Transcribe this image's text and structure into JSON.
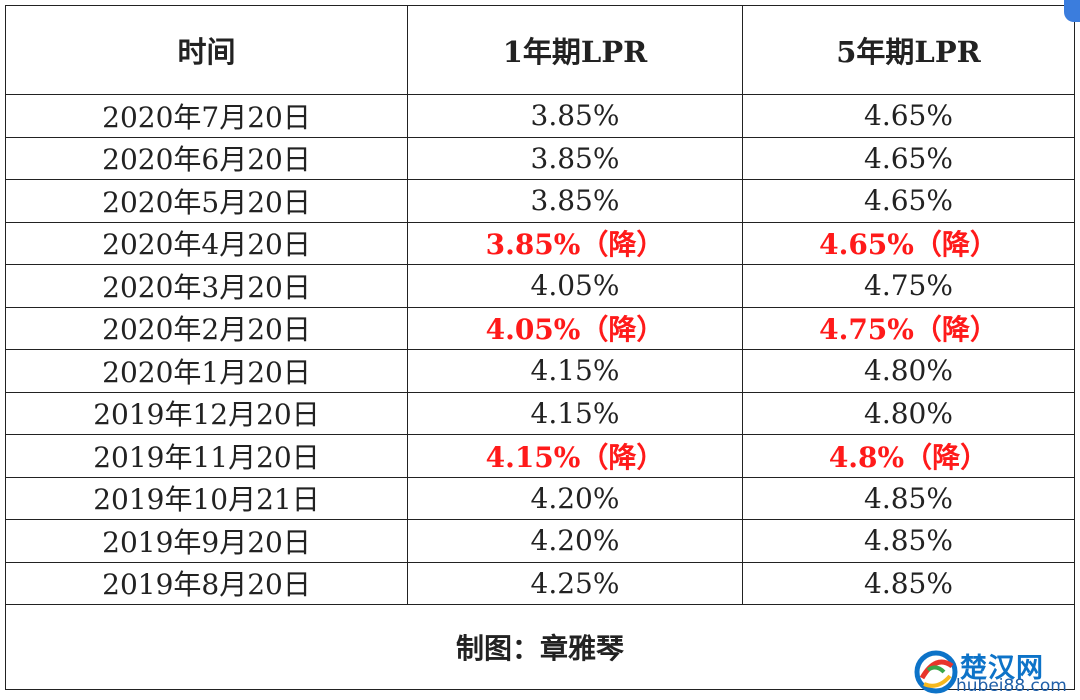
{
  "table": {
    "headers": [
      "时间",
      "1年期LPR",
      "5年期LPR"
    ],
    "rows": [
      {
        "date": "2020年7月20日",
        "lpr1": "3.85%",
        "lpr5": "4.65%",
        "lpr1_cut": false,
        "lpr5_cut": false
      },
      {
        "date": "2020年6月20日",
        "lpr1": "3.85%",
        "lpr5": "4.65%",
        "lpr1_cut": false,
        "lpr5_cut": false
      },
      {
        "date": "2020年5月20日",
        "lpr1": "3.85%",
        "lpr5": "4.65%",
        "lpr1_cut": false,
        "lpr5_cut": false
      },
      {
        "date": "2020年4月20日",
        "lpr1": "3.85%（降）",
        "lpr5": "4.65%（降）",
        "lpr1_cut": true,
        "lpr5_cut": true
      },
      {
        "date": "2020年3月20日",
        "lpr1": "4.05%",
        "lpr5": "4.75%",
        "lpr1_cut": false,
        "lpr5_cut": false
      },
      {
        "date": "2020年2月20日",
        "lpr1": "4.05%（降）",
        "lpr5": "4.75%（降）",
        "lpr1_cut": true,
        "lpr5_cut": true
      },
      {
        "date": "2020年1月20日",
        "lpr1": "4.15%",
        "lpr5": "4.80%",
        "lpr1_cut": false,
        "lpr5_cut": false
      },
      {
        "date": "2019年12月20日",
        "lpr1": "4.15%",
        "lpr5": "4.80%",
        "lpr1_cut": false,
        "lpr5_cut": false
      },
      {
        "date": "2019年11月20日",
        "lpr1": "4.15%（降）",
        "lpr5": "4.8%（降）",
        "lpr1_cut": true,
        "lpr5_cut": true
      },
      {
        "date": "2019年10月21日",
        "lpr1": "4.20%",
        "lpr5": "4.85%",
        "lpr1_cut": false,
        "lpr5_cut": false
      },
      {
        "date": "2019年9月20日",
        "lpr1": "4.20%",
        "lpr5": "4.85%",
        "lpr1_cut": false,
        "lpr5_cut": false
      },
      {
        "date": "2019年8月20日",
        "lpr1": "4.25%",
        "lpr5": "4.85%",
        "lpr1_cut": false,
        "lpr5_cut": false
      }
    ],
    "footer": "制图：章雅琴"
  },
  "watermark": {
    "name": "楚汉网",
    "url": "hubei88.com",
    "icon": "chuhan-logo-icon"
  },
  "colors": {
    "text": "#222222",
    "highlight": "#ff1a1a",
    "brand": "#0d73c8"
  }
}
